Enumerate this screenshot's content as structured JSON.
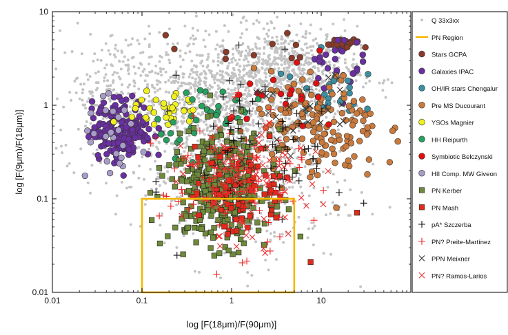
{
  "chart_data": {
    "type": "scatter",
    "xlabel": "log [F(18μm)/F(90μm)]",
    "ylabel": "log [F(9μm)/F(18μm)]",
    "x_scale": "log",
    "y_scale": "log",
    "xlim": [
      0.01,
      100
    ],
    "ylim": [
      0.01,
      10
    ],
    "x_ticks": [
      {
        "value": 0.01,
        "label": "0.01"
      },
      {
        "value": 0.1,
        "label": "0.1"
      },
      {
        "value": 1,
        "label": "1"
      },
      {
        "value": 10,
        "label": "10"
      }
    ],
    "y_ticks": [
      {
        "value": 0.01,
        "label": "0.01"
      },
      {
        "value": 0.1,
        "label": "0.1"
      },
      {
        "value": 1,
        "label": "1"
      },
      {
        "value": 10,
        "label": "10"
      }
    ],
    "grid": false,
    "legend_position": "right",
    "pn_region": {
      "x": [
        0.1,
        5
      ],
      "y": [
        0.01,
        0.1
      ],
      "color": "#f5b800"
    },
    "series": [
      {
        "name": "Q 33x3xx",
        "marker": "dot",
        "color": "#c4c4c4",
        "clusters": [
          {
            "cx": 0.9,
            "cy": 0.8,
            "sx": 0.55,
            "sy": 0.42,
            "n": 1100
          },
          {
            "cx": 4.0,
            "cy": 2.2,
            "sx": 0.4,
            "sy": 0.25,
            "n": 650
          },
          {
            "cx": 0.07,
            "cy": 1.3,
            "sx": 0.4,
            "sy": 0.35,
            "n": 300
          },
          {
            "cx": 1.2,
            "cy": 0.12,
            "sx": 0.6,
            "sy": 0.4,
            "n": 250
          }
        ]
      },
      {
        "name": "PN Region",
        "marker": "line",
        "color": "#f5b800"
      },
      {
        "name": "Stars GCPA",
        "marker": "circle",
        "color": "#8b3a2a",
        "clusters": [
          {
            "cx": 18,
            "cy": 4.4,
            "sx": 0.1,
            "sy": 0.03,
            "n": 25
          },
          {
            "cx": 2,
            "cy": 3.8,
            "sx": 0.5,
            "sy": 0.08,
            "n": 10
          }
        ]
      },
      {
        "name": "Galaxies IPAC",
        "marker": "circle",
        "color": "#6a2fa0",
        "clusters": [
          {
            "cx": 0.06,
            "cy": 0.55,
            "sx": 0.17,
            "sy": 0.16,
            "n": 190
          },
          {
            "cx": 14,
            "cy": 3.0,
            "sx": 0.15,
            "sy": 0.15,
            "n": 25
          }
        ]
      },
      {
        "name": "OH/IR stars Chengalur",
        "marker": "circle",
        "color": "#3d8ea0",
        "clusters": [
          {
            "cx": 12,
            "cy": 1.5,
            "sx": 0.18,
            "sy": 0.18,
            "n": 28
          }
        ]
      },
      {
        "name": "Pre MS Ducourant",
        "marker": "circle",
        "color": "#c97a3c",
        "clusters": [
          {
            "cx": 9,
            "cy": 0.6,
            "sx": 0.35,
            "sy": 0.28,
            "n": 150
          }
        ]
      },
      {
        "name": "YSOs Magnier",
        "marker": "circle",
        "color": "#f0f020",
        "clusters": [
          {
            "cx": 0.18,
            "cy": 0.85,
            "sx": 0.2,
            "sy": 0.12,
            "n": 35
          }
        ]
      },
      {
        "name": "HH Reipurth",
        "marker": "circle",
        "color": "#27a060",
        "clusters": [
          {
            "cx": 0.6,
            "cy": 0.8,
            "sx": 0.3,
            "sy": 0.2,
            "n": 35
          }
        ]
      },
      {
        "name": "Symbiotic Belczynski",
        "marker": "circle",
        "color": "#e01010",
        "clusters": [
          {
            "cx": 5,
            "cy": 1.1,
            "sx": 0.35,
            "sy": 0.2,
            "n": 20
          }
        ]
      },
      {
        "name": "HII Comp. MW  Giveon",
        "marker": "circle",
        "color": "#a89cc8",
        "clusters": [
          {
            "cx": 0.05,
            "cy": 0.4,
            "sx": 0.2,
            "sy": 0.2,
            "n": 25
          }
        ]
      },
      {
        "name": "PN Kerber",
        "marker": "square",
        "color": "#6f8a3a",
        "clusters": [
          {
            "cx": 0.75,
            "cy": 0.13,
            "sx": 0.28,
            "sy": 0.3,
            "n": 380
          }
        ]
      },
      {
        "name": "PN Mash",
        "marker": "square",
        "color": "#e02b1a",
        "clusters": [
          {
            "cx": 1.3,
            "cy": 0.12,
            "sx": 0.3,
            "sy": 0.25,
            "n": 75
          }
        ]
      },
      {
        "name": "pA* Szczerba",
        "marker": "plus",
        "color": "#111111",
        "clusters": [
          {
            "cx": 2.5,
            "cy": 0.4,
            "sx": 0.45,
            "sy": 0.45,
            "n": 70
          }
        ]
      },
      {
        "name": "PN? Preite-Martínez",
        "marker": "plus",
        "color": "#ee2020",
        "clusters": [
          {
            "cx": 1.0,
            "cy": 0.15,
            "sx": 0.4,
            "sy": 0.35,
            "n": 110
          }
        ]
      },
      {
        "name": "PPN Meixner",
        "marker": "x",
        "color": "#333333",
        "clusters": [
          {
            "cx": 5,
            "cy": 0.7,
            "sx": 0.3,
            "sy": 0.25,
            "n": 25
          }
        ]
      },
      {
        "name": "PN? Ramos-Larios",
        "marker": "x",
        "color": "#ee3030",
        "clusters": [
          {
            "cx": 1.5,
            "cy": 0.14,
            "sx": 0.35,
            "sy": 0.3,
            "n": 110
          }
        ]
      }
    ]
  }
}
